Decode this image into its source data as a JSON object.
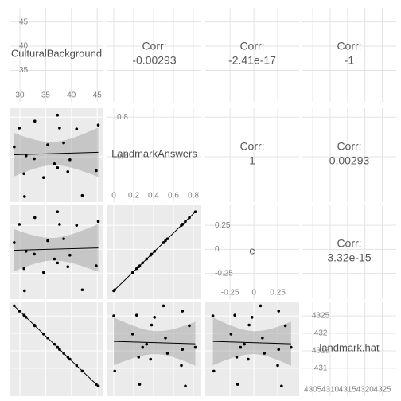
{
  "chart_data": {
    "type": "pairs",
    "variables": [
      {
        "name": "CulturalBackground",
        "values": [
          32.9,
          37.3,
          37.7,
          29.9,
          41.0,
          28.9,
          35.4,
          38.5,
          45.2,
          31.2,
          32.8,
          36.7,
          37.3,
          39.3,
          39.7,
          44.8,
          30.8,
          34.6,
          42.1,
          30.9
        ],
        "xlim": [
          28,
          46.2
        ],
        "xticks": [
          30,
          35,
          40,
          45
        ],
        "ylim": [
          28.5,
          47.9
        ],
        "yticks": [
          35,
          40,
          45
        ]
      },
      {
        "name": "LandmarkAnswers",
        "values": [
          0.76,
          0.82,
          0.69,
          0.69,
          0.68,
          0.5,
          0.52,
          0.54,
          0.72,
          0.41,
          0.38,
          0.33,
          0.29,
          0.25,
          0.37,
          0.26,
          0.23,
          0.19,
          0.01,
          0.0
        ],
        "xlim": [
          -0.064,
          0.88
        ],
        "xticks": [
          0,
          0.2,
          0.4,
          0.6,
          0.8
        ],
        "ylim": [
          -0.057,
          0.89
        ],
        "yticks": [
          0.4,
          0.8
        ]
      },
      {
        "name": "e",
        "values": [
          0.33,
          0.39,
          0.26,
          0.26,
          0.25,
          0.07,
          0.09,
          0.11,
          0.29,
          -0.02,
          -0.05,
          -0.1,
          -0.14,
          -0.18,
          -0.06,
          -0.17,
          -0.2,
          -0.24,
          -0.42,
          -0.43
        ],
        "xlim": [
          -0.51,
          0.475
        ],
        "xticks": [
          -0.25,
          0,
          0.25
        ],
        "ylim": [
          -0.517,
          0.458
        ],
        "yticks": [
          -0.25,
          0,
          0.25
        ]
      },
      {
        "name": "landmark.hat",
        "values": [
          4322.2,
          4316.0,
          4315.4,
          4326.4,
          4310.8,
          4327.9,
          4318.7,
          4314.3,
          4304.9,
          4324.6,
          4322.4,
          4316.9,
          4316.0,
          4313.2,
          4312.6,
          4305.4,
          4325.2,
          4319.8,
          4309.2,
          4325.0
        ],
        "xlim": [
          4302,
          4329
        ],
        "xticks": [
          4305,
          4310,
          4315,
          4320,
          4325
        ],
        "ylim": [
          4302,
          4328.9
        ],
        "yticks": [
          4325,
          {
            "value": 4320,
            "label": ".432"
          },
          4315,
          {
            "value": 4310,
            "label": ".431"
          }
        ]
      }
    ],
    "corr_label": "Corr:",
    "correlations": [
      -0.00293,
      -2.41e-17,
      -1,
      1,
      0.00293,
      3.32e-15
    ]
  }
}
